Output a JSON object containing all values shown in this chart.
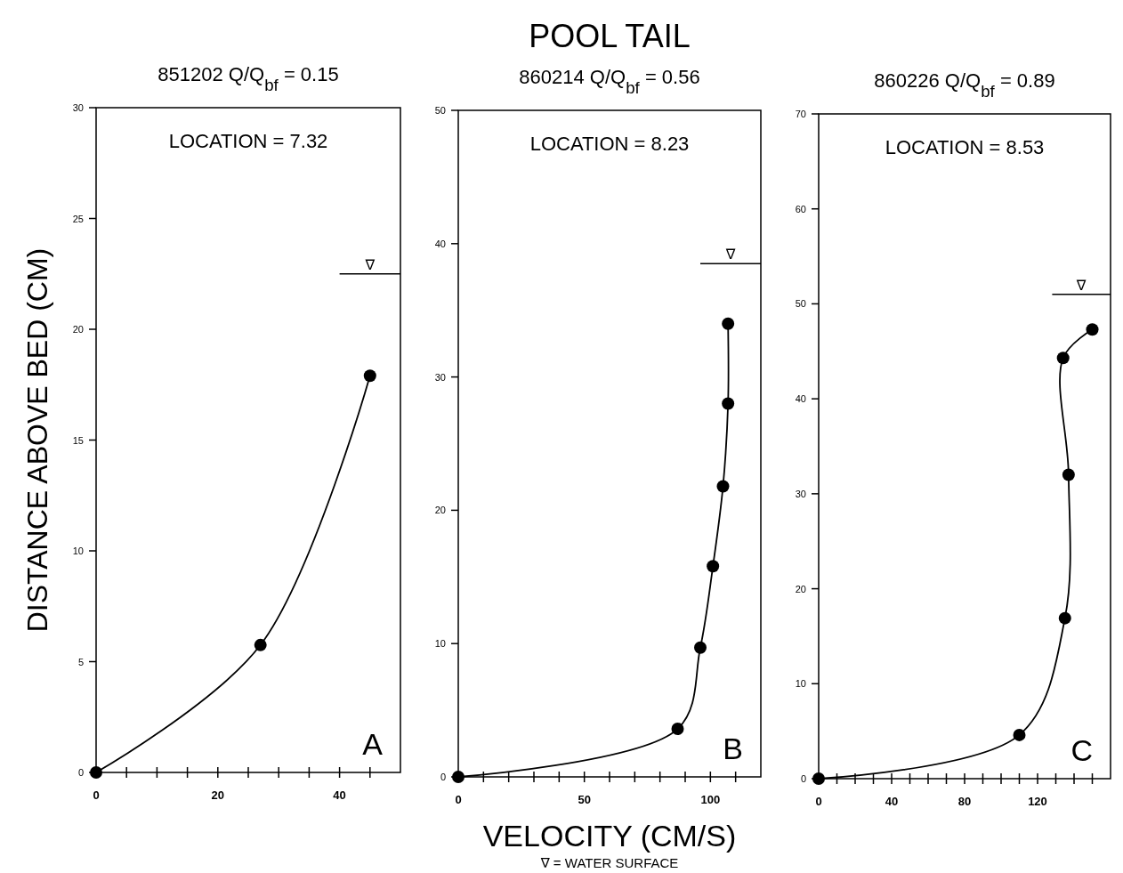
{
  "chart_data": [
    {
      "type": "line",
      "subtitle": "851202    Q/Q$_{bf}$ = 0.15",
      "ylabel": "DISTANCE ABOVE BED (CM)",
      "annotations": [
        "LOCATION = 7.32",
        "A"
      ],
      "marker": "circle",
      "line_style": "solid",
      "grid": false,
      "xlim": [
        0,
        50
      ],
      "xticks": [
        0,
        {
          "value": 5,
          "label": null
        },
        {
          "value": 10,
          "label": null
        },
        {
          "value": 15,
          "label": null
        },
        20,
        {
          "value": 25,
          "label": null
        },
        {
          "value": 30,
          "label": null
        },
        {
          "value": 35,
          "label": null
        },
        40,
        {
          "value": 45,
          "label": null
        }
      ],
      "ylim": [
        0,
        30
      ],
      "yticks": [
        0,
        5,
        10,
        15,
        20,
        25,
        30
      ],
      "ref_lines": [
        {
          "axis": "y",
          "value": 22.5,
          "label": "∇"
        }
      ],
      "series": [
        {
          "color": "#000000",
          "x": [
            0,
            27,
            45
          ],
          "values": [
            0,
            5.75,
            17.9
          ]
        }
      ]
    },
    {
      "type": "line",
      "title": "POOL TAIL",
      "subtitle": "860214    Q/Q$_{bf}$ = 0.56",
      "xlabel": "VELOCITY (CM/S)",
      "annotations": [
        "LOCATION = 8.23",
        "B",
        "∇ = WATER SURFACE"
      ],
      "marker": "circle",
      "line_style": "solid",
      "grid": false,
      "xlim": [
        0,
        120
      ],
      "xticks": [
        0,
        {
          "value": 10,
          "label": null
        },
        {
          "value": 20,
          "label": null
        },
        {
          "value": 30,
          "label": null
        },
        {
          "value": 40,
          "label": null
        },
        50,
        {
          "value": 60,
          "label": null
        },
        {
          "value": 70,
          "label": null
        },
        {
          "value": 80,
          "label": null
        },
        {
          "value": 90,
          "label": null
        },
        100,
        {
          "value": 110,
          "label": null
        }
      ],
      "ylim": [
        0,
        50
      ],
      "yticks": [
        0,
        10,
        20,
        30,
        40,
        50
      ],
      "ref_lines": [
        {
          "axis": "y",
          "value": 38.5,
          "label": "∇"
        }
      ],
      "series": [
        {
          "color": "#000000",
          "x": [
            0,
            87,
            96,
            101,
            105,
            107,
            107
          ],
          "values": [
            0,
            3.6,
            9.7,
            15.8,
            21.8,
            28,
            34
          ]
        }
      ]
    },
    {
      "type": "line",
      "subtitle": "860226    Q/Q$_{bf}$ = 0.89",
      "annotations": [
        "LOCATION = 8.53",
        "C"
      ],
      "marker": "circle",
      "line_style": "solid",
      "grid": false,
      "xlim": [
        0,
        160
      ],
      "xticks": [
        0,
        {
          "value": 10,
          "label": null
        },
        {
          "value": 20,
          "label": null
        },
        {
          "value": 30,
          "label": null
        },
        40,
        {
          "value": 50,
          "label": null
        },
        {
          "value": 60,
          "label": null
        },
        {
          "value": 70,
          "label": null
        },
        80,
        {
          "value": 90,
          "label": null
        },
        {
          "value": 100,
          "label": null
        },
        {
          "value": 110,
          "label": null
        },
        120,
        {
          "value": 130,
          "label": null
        },
        {
          "value": 140,
          "label": null
        },
        {
          "value": 150,
          "label": null
        }
      ],
      "ylim": [
        0,
        70
      ],
      "yticks": [
        0,
        10,
        20,
        30,
        40,
        50,
        60,
        70
      ],
      "ref_lines": [
        {
          "axis": "y",
          "value": 51,
          "label": "∇"
        }
      ],
      "series": [
        {
          "color": "#000000",
          "x": [
            0,
            110,
            135,
            137,
            134,
            150
          ],
          "values": [
            0,
            4.6,
            16.9,
            32,
            44.3,
            47.3
          ]
        }
      ]
    }
  ]
}
